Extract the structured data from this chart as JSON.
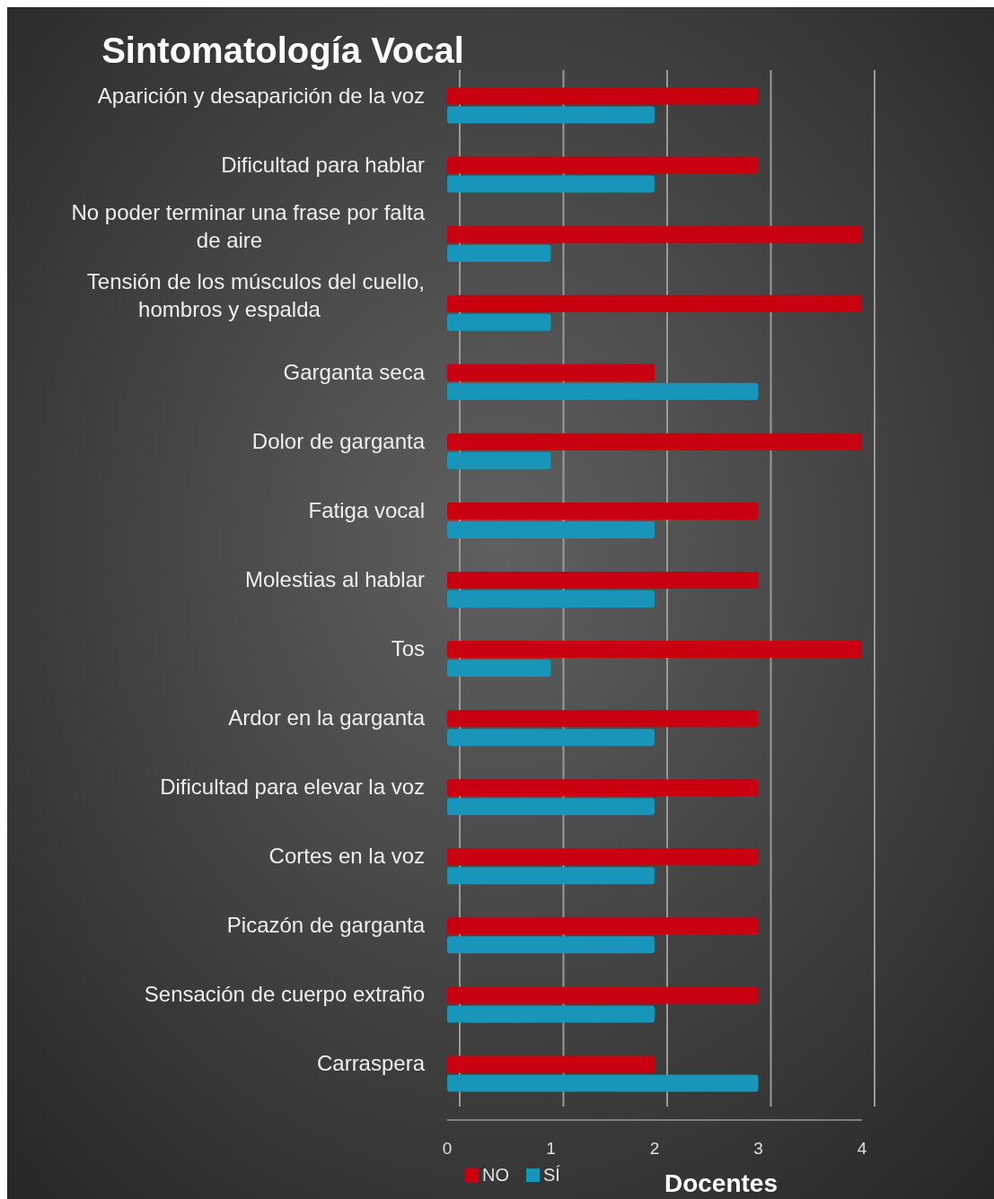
{
  "chart_data": {
    "type": "bar",
    "orientation": "horizontal",
    "title": "Sintomatología Vocal",
    "xlabel": "Docentes",
    "categories": [
      "Aparición y desaparición de la voz",
      "Dificultad para hablar",
      "No poder terminar una frase por falta de aire",
      "Tensión de los músculos del cuello, hombros y espalda",
      "Garganta seca",
      "Dolor de garganta",
      "Fatiga vocal",
      "Molestias al hablar",
      "Tos",
      "Ardor en la garganta",
      "Dificultad para elevar la voz",
      "Cortes en la voz",
      "Picazón de garganta",
      "Sensación de cuerpo extraño",
      "Carraspera"
    ],
    "series": [
      {
        "name": "NO",
        "color": "#c8000f",
        "values": [
          3,
          3,
          4,
          4,
          2,
          4,
          3,
          3,
          4,
          3,
          3,
          3,
          3,
          3,
          2
        ]
      },
      {
        "name": "SÍ",
        "color": "#1895b8",
        "values": [
          2,
          2,
          1,
          1,
          3,
          1,
          2,
          2,
          1,
          2,
          2,
          2,
          2,
          2,
          3
        ]
      }
    ],
    "xlim": [
      0,
      4
    ],
    "xticks": [
      0,
      1,
      2,
      3,
      4
    ],
    "grid": "x",
    "legend": "bottom left"
  }
}
